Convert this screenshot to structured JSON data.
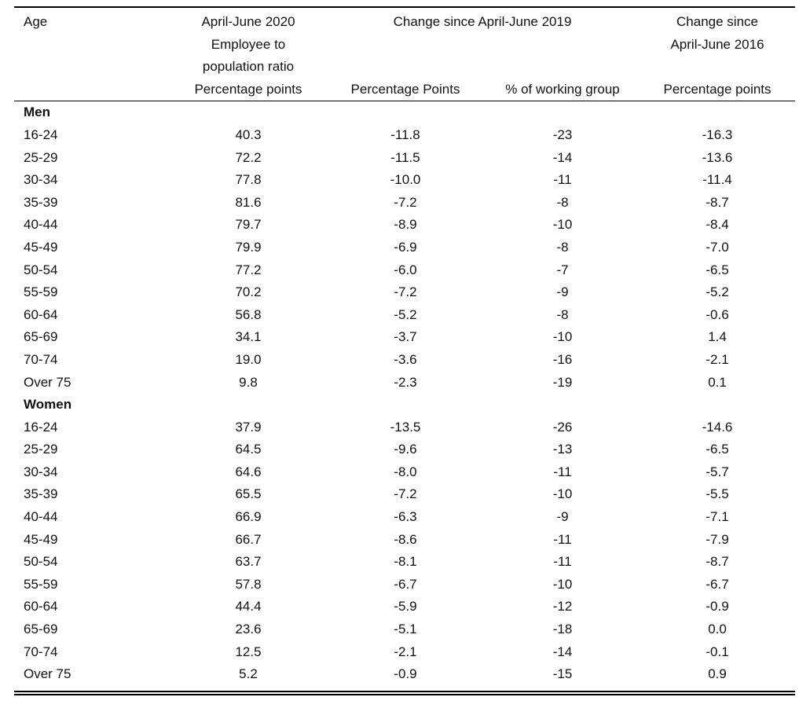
{
  "header": {
    "age": "Age",
    "col2": [
      "April-June 2020",
      "Employee to",
      "population ratio"
    ],
    "change_2019": "Change since April-June 2019",
    "col5": [
      "Change since",
      "April-June 2016"
    ],
    "units": [
      "Percentage points",
      "Percentage Points",
      "% of working group",
      "Percentage points"
    ]
  },
  "sections": [
    {
      "label": "Men",
      "rows": [
        [
          "16-24",
          "40.3",
          "-11.8",
          "-23",
          "-16.3"
        ],
        [
          "25-29",
          "72.2",
          "-11.5",
          "-14",
          "-13.6"
        ],
        [
          "30-34",
          "77.8",
          "-10.0",
          "-11",
          "-11.4"
        ],
        [
          "35-39",
          "81.6",
          "-7.2",
          "-8",
          "-8.7"
        ],
        [
          "40-44",
          "79.7",
          "-8.9",
          "-10",
          "-8.4"
        ],
        [
          "45-49",
          "79.9",
          "-6.9",
          "-8",
          "-7.0"
        ],
        [
          "50-54",
          "77.2",
          "-6.0",
          "-7",
          "-6.5"
        ],
        [
          "55-59",
          "70.2",
          "-7.2",
          "-9",
          "-5.2"
        ],
        [
          "60-64",
          "56.8",
          "-5.2",
          "-8",
          "-0.6"
        ],
        [
          "65-69",
          "34.1",
          "-3.7",
          "-10",
          "1.4"
        ],
        [
          "70-74",
          "19.0",
          "-3.6",
          "-16",
          "-2.1"
        ],
        [
          "Over 75",
          "9.8",
          "-2.3",
          "-19",
          "0.1"
        ]
      ]
    },
    {
      "label": "Women",
      "rows": [
        [
          "16-24",
          "37.9",
          "-13.5",
          "-26",
          "-14.6"
        ],
        [
          "25-29",
          "64.5",
          "-9.6",
          "-13",
          "-6.5"
        ],
        [
          "30-34",
          "64.6",
          "-8.0",
          "-11",
          "-5.7"
        ],
        [
          "35-39",
          "65.5",
          "-7.2",
          "-10",
          "-5.5"
        ],
        [
          "40-44",
          "66.9",
          "-6.3",
          "-9",
          "-7.1"
        ],
        [
          "45-49",
          "66.7",
          "-8.6",
          "-11",
          "-7.9"
        ],
        [
          "50-54",
          "63.7",
          "-8.1",
          "-11",
          "-8.7"
        ],
        [
          "55-59",
          "57.8",
          "-6.7",
          "-10",
          "-6.7"
        ],
        [
          "60-64",
          "44.4",
          "-5.9",
          "-12",
          "-0.9"
        ],
        [
          "65-69",
          "23.6",
          "-5.1",
          "-18",
          "0.0"
        ],
        [
          "70-74",
          "12.5",
          "-2.1",
          "-14",
          "-0.1"
        ],
        [
          "Over 75",
          "5.2",
          "-0.9",
          "-15",
          "0.9"
        ]
      ]
    }
  ]
}
